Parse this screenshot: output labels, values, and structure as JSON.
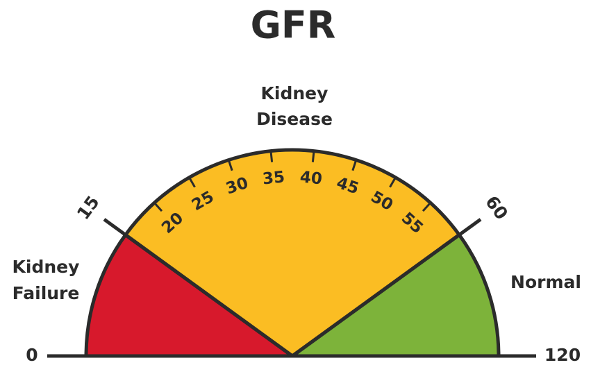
{
  "title": "GFR",
  "segments": [
    {
      "label": [
        "Kidney",
        "Failure"
      ],
      "from": 0,
      "to": 15,
      "color": "#d7192c"
    },
    {
      "label": [
        "Kidney",
        "Disease"
      ],
      "from": 15,
      "to": 60,
      "color": "#fbbd23"
    },
    {
      "label": [
        "Normal"
      ],
      "from": 60,
      "to": 120,
      "color": "#7db33a"
    }
  ],
  "ticks": [
    0,
    15,
    20,
    25,
    30,
    35,
    40,
    45,
    50,
    55,
    60,
    120
  ]
}
